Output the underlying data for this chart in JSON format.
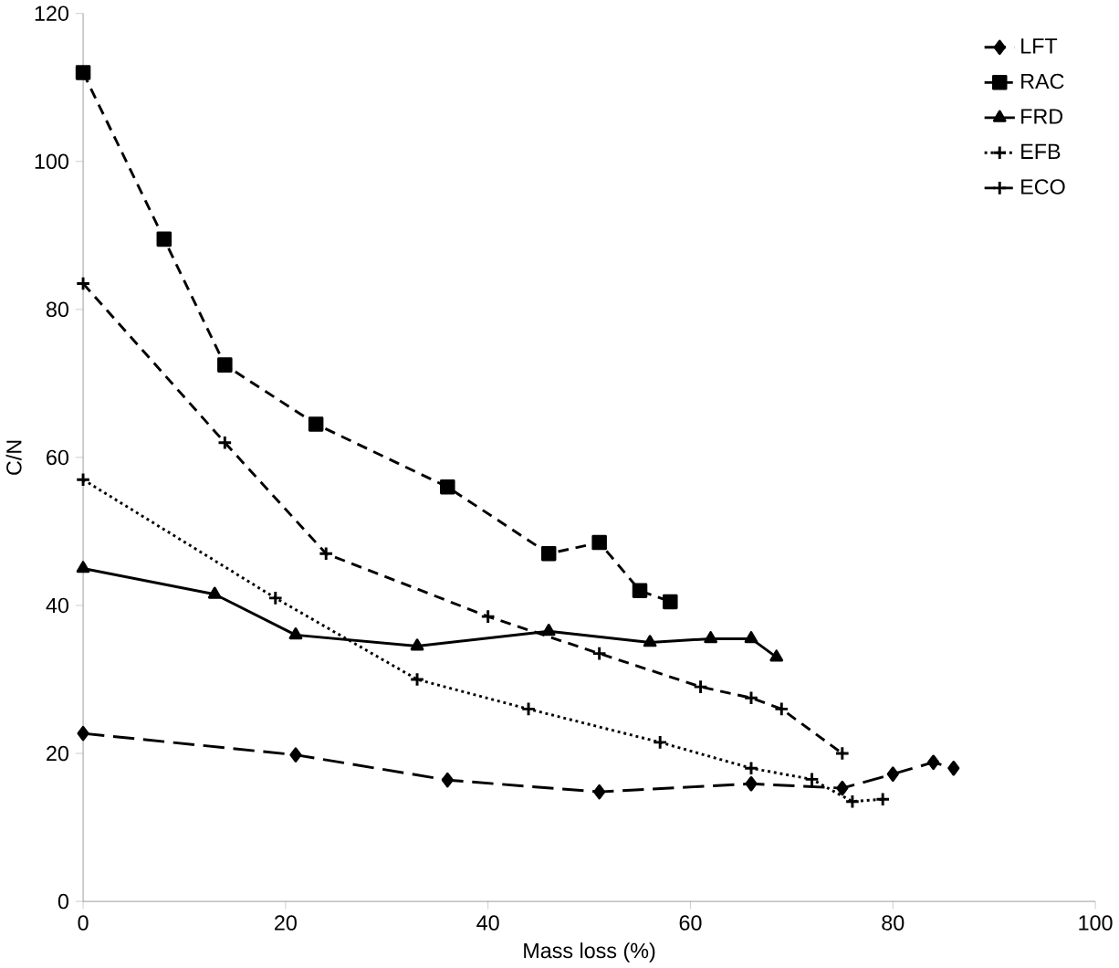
{
  "chart_data": {
    "type": "line",
    "xlabel": "Mass loss (%)",
    "ylabel": "C/N",
    "xlim": [
      0,
      100
    ],
    "ylim": [
      0,
      120
    ],
    "xticks": [
      0,
      20,
      40,
      60,
      80,
      100
    ],
    "yticks": [
      0,
      20,
      40,
      60,
      80,
      100,
      120
    ],
    "grid": false,
    "legend": "top right",
    "series": [
      {
        "name": "LFT",
        "color": "#000000",
        "marker": "diamond",
        "line_style": "longdashed",
        "x": [
          0,
          21,
          36,
          51,
          66,
          75,
          80,
          84,
          86
        ],
        "values": [
          22.7,
          19.8,
          16.4,
          14.8,
          15.9,
          15.3,
          17.2,
          18.8,
          18
        ]
      },
      {
        "name": "RAC",
        "color": "#000000",
        "marker": "square",
        "line_style": "dashed",
        "x": [
          0,
          8,
          14,
          23,
          36,
          46,
          51,
          55,
          58
        ],
        "values": [
          112,
          89.5,
          72.5,
          64.5,
          56,
          47,
          48.5,
          42,
          40.5
        ]
      },
      {
        "name": "FRD",
        "color": "#000000",
        "marker": "triangle",
        "line_style": "solid",
        "x": [
          0,
          13,
          21,
          33,
          46,
          56,
          62,
          66,
          68.5
        ],
        "values": [
          45,
          41.5,
          36,
          34.5,
          36.5,
          35,
          35.5,
          35.5,
          33
        ]
      },
      {
        "name": "EFB",
        "color": "#000000",
        "marker": "cross",
        "line_style": "dotted",
        "x": [
          0,
          19,
          33,
          44,
          57,
          66,
          72,
          76,
          79
        ],
        "values": [
          57,
          41,
          30,
          26,
          21.5,
          18,
          16.5,
          13.5,
          13.8
        ]
      },
      {
        "name": "ECO",
        "color": "#000000",
        "marker": "cross",
        "line_style": "dashed",
        "x": [
          0,
          14,
          24,
          40,
          51,
          61,
          66,
          69,
          75
        ],
        "values": [
          83.5,
          62,
          47,
          38.5,
          33.5,
          29,
          27.5,
          26,
          20
        ]
      }
    ]
  }
}
